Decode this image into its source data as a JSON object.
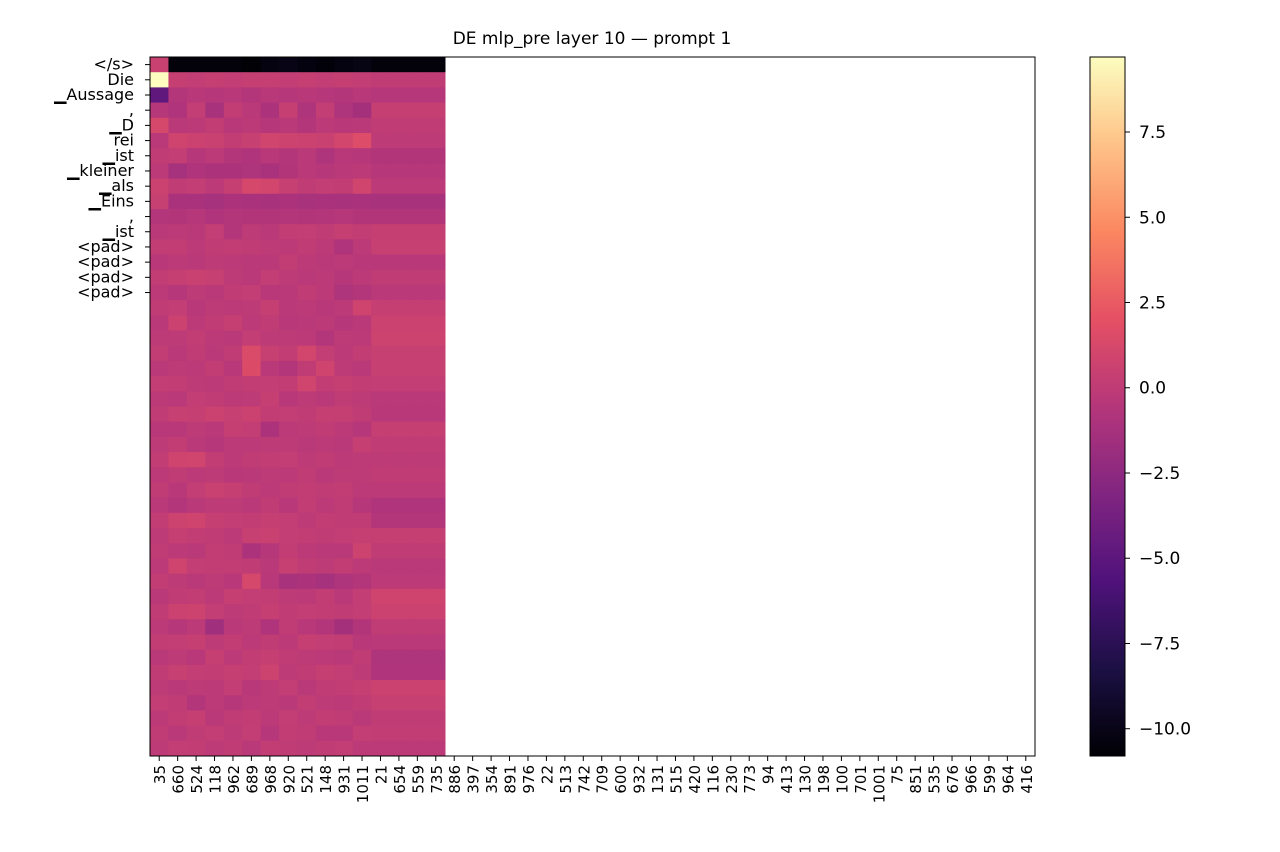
{
  "chart_data": {
    "type": "heatmap",
    "title": "DE mlp_pre layer 10 — prompt 1",
    "xlabel": "",
    "ylabel": "",
    "x_tick_labels": [
      "35",
      "660",
      "524",
      "118",
      "962",
      "689",
      "968",
      "920",
      "521",
      "148",
      "931",
      "1011",
      "21",
      "654",
      "559",
      "735",
      "886",
      "397",
      "354",
      "891",
      "976",
      "22",
      "513",
      "742",
      "709",
      "600",
      "932",
      "131",
      "515",
      "420",
      "116",
      "230",
      "773",
      "94",
      "413",
      "130",
      "198",
      "100",
      "701",
      "1001",
      "75",
      "851",
      "535",
      "676",
      "966",
      "599",
      "964",
      "416"
    ],
    "y_tick_labels": [
      "</s>",
      "Die",
      "▁Aussage",
      ",",
      "▁D",
      "rei",
      "▁ist",
      "▁kleiner",
      "▁als",
      "▁Eins",
      ",",
      "▁ist",
      "<pad>",
      "<pad>",
      "<pad>",
      "<pad>"
    ],
    "n_rows": 46,
    "n_cols_filled": 16,
    "n_cols_total": 48,
    "colormap": "magma",
    "colorbar": {
      "vmin": -10.8,
      "vmax": 9.7,
      "ticks": [
        -10.0,
        -7.5,
        -5.0,
        -2.5,
        0.0,
        2.5,
        5.0,
        7.5
      ],
      "tick_labels": [
        "−10.0",
        "−7.5",
        "−5.0",
        "−2.5",
        "0.0",
        "2.5",
        "5.0",
        "7.5"
      ]
    },
    "values": [
      [
        0.5,
        -10.5,
        -10.5,
        -10.5,
        -10.5,
        -10.7,
        -10.3,
        -10.1,
        -10.4,
        -10.6,
        -10.3,
        -10.2,
        -10.5,
        -10.5,
        -10.5,
        -10.5
      ],
      [
        9.7,
        0.3,
        0.2,
        0.3,
        0.2,
        0.3,
        0.3,
        0.2,
        0.3,
        0.2,
        0.3,
        0.2,
        0.0,
        0.0,
        0.0,
        0.0
      ],
      [
        -4.8,
        -0.6,
        -0.4,
        -0.5,
        -0.4,
        -0.6,
        -0.4,
        -0.5,
        -0.4,
        -0.5,
        -0.6,
        -0.4,
        -0.5,
        -0.5,
        -0.5,
        -0.5
      ],
      [
        -0.5,
        -0.8,
        0.2,
        -1.2,
        0.1,
        -0.3,
        -1.0,
        0.3,
        -0.9,
        0.2,
        -0.9,
        -1.4,
        0.3,
        0.3,
        0.3,
        0.3
      ],
      [
        1.2,
        -0.3,
        -0.2,
        0.1,
        -0.4,
        -0.2,
        -0.5,
        -0.3,
        -0.6,
        -0.2,
        -0.4,
        -0.3,
        0.0,
        0.0,
        0.0,
        0.0
      ],
      [
        -0.3,
        0.8,
        0.6,
        0.5,
        0.1,
        0.4,
        0.9,
        0.7,
        0.6,
        0.5,
        1.0,
        1.6,
        -0.1,
        -0.1,
        -0.1,
        -0.1
      ],
      [
        0.0,
        0.2,
        -0.5,
        -0.2,
        -0.6,
        -0.8,
        -0.4,
        -0.6,
        -0.3,
        -0.9,
        -0.4,
        -0.5,
        -0.7,
        -0.7,
        -0.7,
        -0.7
      ],
      [
        -0.2,
        -1.3,
        -0.8,
        -1.0,
        -1.0,
        -0.9,
        -1.1,
        -0.7,
        -0.3,
        -0.5,
        -0.3,
        -0.2,
        -0.5,
        -0.5,
        -0.5,
        -0.5
      ],
      [
        0.6,
        0.0,
        0.2,
        -0.2,
        0.3,
        1.2,
        1.0,
        0.4,
        0.0,
        0.2,
        0.1,
        0.9,
        -0.2,
        -0.2,
        -0.2,
        -0.2
      ],
      [
        0.4,
        -1.1,
        -1.1,
        -1.3,
        -1.0,
        -1.1,
        -1.2,
        -1.0,
        -1.2,
        -1.1,
        -1.2,
        -1.1,
        -1.2,
        -1.2,
        -1.2,
        -1.2
      ],
      [
        -0.6,
        -0.7,
        -0.5,
        -0.8,
        -0.6,
        -0.7,
        -0.7,
        -0.6,
        -0.7,
        -0.6,
        -0.5,
        -0.7,
        -0.7,
        -0.7,
        -0.7,
        -0.7
      ],
      [
        -0.3,
        -0.2,
        -0.3,
        0.2,
        -0.6,
        -0.1,
        -0.3,
        0.1,
        0.2,
        0.0,
        0.3,
        0.1,
        0.3,
        0.3,
        0.3,
        0.3
      ],
      [
        0.1,
        0.1,
        -0.2,
        0.0,
        0.1,
        0.0,
        -0.1,
        -0.2,
        0.0,
        -0.2,
        -0.8,
        -0.2,
        0.4,
        0.4,
        0.4,
        0.4
      ],
      [
        -0.4,
        -0.2,
        -0.3,
        -0.1,
        -0.2,
        -0.3,
        -0.3,
        0.1,
        -0.2,
        -0.3,
        -0.2,
        -0.4,
        -0.4,
        -0.4,
        -0.4,
        -0.4
      ],
      [
        0.1,
        0.3,
        0.5,
        0.4,
        -0.1,
        -0.3,
        0.2,
        -0.1,
        -0.3,
        -0.2,
        -0.5,
        -0.2,
        0.0,
        0.0,
        0.0,
        0.0
      ],
      [
        -0.2,
        -0.5,
        -0.1,
        -0.3,
        0.0,
        0.2,
        -0.4,
        -0.3,
        0.0,
        -0.2,
        -0.9,
        -0.6,
        -0.3,
        -0.3,
        -0.3,
        -0.3
      ],
      [
        0.0,
        0.2,
        -0.4,
        -0.1,
        -0.2,
        -0.1,
        0.3,
        -0.3,
        -0.2,
        -0.4,
        -0.2,
        0.8,
        0.3,
        0.3,
        0.3,
        0.3
      ],
      [
        -0.3,
        0.6,
        -0.2,
        0.0,
        0.3,
        -0.2,
        0.0,
        -0.4,
        -0.3,
        -0.2,
        -0.5,
        -0.3,
        0.6,
        0.6,
        0.6,
        0.6
      ],
      [
        -0.1,
        -0.1,
        0.1,
        -0.2,
        -0.3,
        0.2,
        -0.1,
        -0.1,
        -0.2,
        -0.6,
        -0.1,
        -0.2,
        0.7,
        0.7,
        0.7,
        0.7
      ],
      [
        0.1,
        -0.3,
        0.0,
        -0.3,
        0.0,
        1.4,
        0.4,
        0.1,
        1.0,
        0.2,
        -0.2,
        0.1,
        0.4,
        0.4,
        0.4,
        0.4
      ],
      [
        -0.3,
        -0.1,
        -0.2,
        0.1,
        -0.4,
        1.5,
        -0.3,
        -0.6,
        0.0,
        0.8,
        -0.1,
        -0.3,
        0.4,
        0.4,
        0.4,
        0.4
      ],
      [
        0.2,
        0.1,
        -0.1,
        -0.2,
        0.0,
        0.1,
        0.2,
        0.1,
        0.9,
        0.1,
        0.3,
        0.1,
        0.2,
        0.2,
        0.2,
        0.2
      ],
      [
        -0.2,
        -0.3,
        0.2,
        0.0,
        -0.2,
        -0.1,
        0.3,
        -0.4,
        -0.1,
        -0.3,
        0.0,
        -0.1,
        -0.3,
        -0.3,
        -0.3,
        -0.3
      ],
      [
        0.0,
        0.4,
        0.3,
        0.6,
        0.4,
        0.6,
        0.1,
        0.2,
        0.0,
        0.3,
        0.3,
        0.0,
        -0.4,
        -0.4,
        -0.4,
        -0.4
      ],
      [
        -0.4,
        -0.4,
        -0.1,
        -0.3,
        0.3,
        0.2,
        -1.0,
        -0.2,
        -0.1,
        0.0,
        -0.2,
        -0.5,
        0.3,
        0.3,
        0.3,
        0.3
      ],
      [
        -0.1,
        0.1,
        -0.3,
        -0.5,
        -0.2,
        -0.2,
        -0.1,
        -0.1,
        -0.3,
        -0.2,
        -0.3,
        0.3,
        0.0,
        0.0,
        0.0,
        0.0
      ],
      [
        0.1,
        0.8,
        0.9,
        0.1,
        -0.2,
        0.0,
        0.1,
        0.2,
        -0.1,
        0.0,
        -0.2,
        -0.1,
        -0.1,
        -0.1,
        -0.1,
        -0.1
      ],
      [
        -0.2,
        0.0,
        -0.2,
        -0.1,
        -0.4,
        -0.3,
        -0.1,
        -0.2,
        0.0,
        -0.3,
        -0.1,
        -0.1,
        0.0,
        0.0,
        0.0,
        0.0
      ],
      [
        0.0,
        -0.4,
        0.2,
        0.5,
        0.3,
        0.0,
        -0.2,
        0.0,
        0.1,
        0.0,
        0.1,
        -0.2,
        -0.2,
        -0.2,
        -0.2,
        -0.2
      ],
      [
        -0.3,
        -0.6,
        -0.3,
        -0.1,
        -0.1,
        -0.3,
        0.0,
        -0.4,
        0.1,
        -0.2,
        0.0,
        -0.5,
        -0.8,
        -0.8,
        -0.8,
        -0.8
      ],
      [
        0.1,
        0.7,
        0.8,
        0.3,
        0.2,
        0.1,
        0.3,
        0.2,
        -0.1,
        0.1,
        0.0,
        0.0,
        -0.6,
        -0.6,
        -0.6,
        -0.6
      ],
      [
        -0.1,
        0.3,
        0.1,
        0.0,
        -0.2,
        0.4,
        0.5,
        0.2,
        0.1,
        0.0,
        0.2,
        0.3,
        0.3,
        0.3,
        0.3,
        0.3
      ],
      [
        0.0,
        -0.2,
        -0.3,
        0.1,
        0.0,
        -1.0,
        -0.5,
        0.1,
        -0.2,
        -0.3,
        -0.3,
        0.7,
        0.0,
        0.0,
        0.0,
        0.0
      ],
      [
        -0.2,
        0.8,
        0.2,
        0.1,
        0.1,
        0.0,
        -0.3,
        0.4,
        0.0,
        -0.1,
        0.1,
        -0.2,
        -0.3,
        -0.3,
        -0.3,
        -0.3
      ],
      [
        0.1,
        -0.1,
        -0.3,
        -0.1,
        -0.4,
        1.2,
        -0.4,
        -1.2,
        -1.0,
        -1.3,
        -0.9,
        -0.6,
        -0.2,
        -0.2,
        -0.2,
        -0.2
      ],
      [
        -0.3,
        0.0,
        0.1,
        -0.2,
        0.3,
        0.2,
        0.1,
        -0.1,
        -0.2,
        0.1,
        -0.3,
        0.2,
        0.8,
        0.8,
        0.8,
        0.8
      ],
      [
        0.0,
        0.6,
        0.7,
        0.2,
        -0.1,
        0.0,
        0.3,
        0.0,
        0.2,
        0.1,
        0.0,
        0.2,
        0.6,
        0.6,
        0.6,
        0.6
      ],
      [
        -0.2,
        -0.5,
        -0.2,
        -1.6,
        -0.3,
        -0.1,
        -0.8,
        0.0,
        -0.4,
        -0.6,
        -1.4,
        -0.7,
        0.0,
        0.0,
        0.0,
        0.0
      ],
      [
        0.1,
        0.2,
        0.3,
        -0.1,
        0.1,
        -0.2,
        0.0,
        -0.2,
        0.3,
        0.2,
        0.1,
        -0.4,
        -0.3,
        -0.3,
        -0.3,
        -0.3
      ],
      [
        -0.3,
        -0.1,
        -0.4,
        0.3,
        -0.2,
        0.1,
        0.3,
        0.0,
        -0.1,
        -0.2,
        -0.3,
        0.0,
        -0.9,
        -0.9,
        -0.9,
        -0.9
      ],
      [
        0.0,
        0.4,
        0.2,
        0.1,
        0.3,
        0.2,
        0.7,
        -0.1,
        0.0,
        0.3,
        0.2,
        -0.1,
        -0.8,
        -0.8,
        -0.8,
        -0.8
      ],
      [
        -0.1,
        -0.3,
        -0.1,
        -0.2,
        0.2,
        -0.4,
        -0.1,
        0.2,
        -0.3,
        0.0,
        0.1,
        0.3,
        0.6,
        0.6,
        0.6,
        0.6
      ],
      [
        0.2,
        0.0,
        -0.6,
        -0.2,
        -0.5,
        -0.2,
        -0.1,
        -0.3,
        0.1,
        -0.1,
        -0.2,
        0.0,
        0.4,
        0.4,
        0.4,
        0.4
      ],
      [
        -0.2,
        0.1,
        0.3,
        -0.3,
        0.0,
        0.1,
        -0.2,
        0.2,
        -0.1,
        0.1,
        0.0,
        -0.3,
        0.0,
        0.0,
        0.0,
        0.0
      ],
      [
        0.0,
        -0.3,
        0.0,
        0.2,
        -0.1,
        0.2,
        -0.5,
        0.1,
        0.0,
        -0.4,
        -0.4,
        0.2,
        0.1,
        0.1,
        0.1,
        0.1
      ],
      [
        -0.1,
        0.2,
        0.1,
        -0.1,
        0.0,
        -0.3,
        0.1,
        0.0,
        -0.1,
        0.0,
        0.2,
        -0.2,
        -0.2,
        -0.2,
        -0.2,
        -0.2
      ]
    ]
  }
}
